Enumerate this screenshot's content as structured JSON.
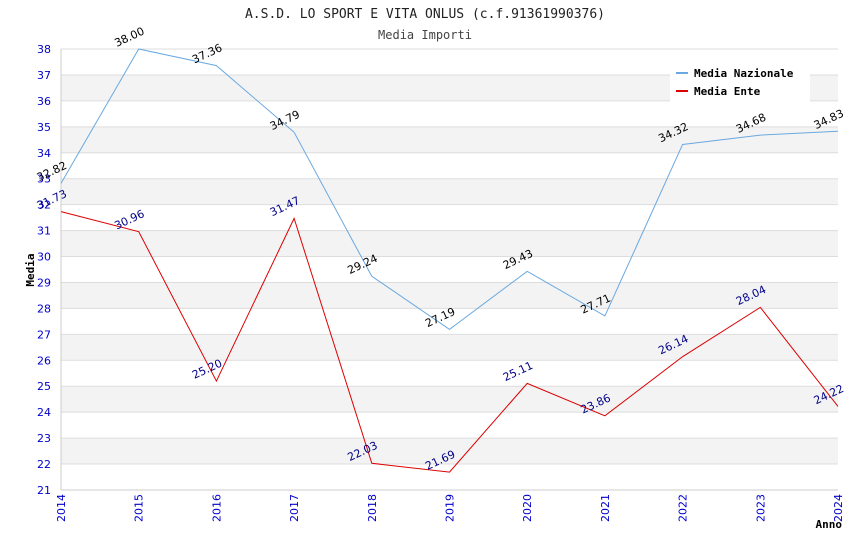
{
  "chart_data": {
    "type": "line",
    "title": "A.S.D. LO SPORT E VITA ONLUS (c.f.91361990376)",
    "subtitle": "Media Importi",
    "xlabel": "Anno",
    "ylabel": "Media",
    "ylim": [
      21,
      38
    ],
    "yticks": [
      "21",
      "22",
      "23",
      "24",
      "25",
      "26",
      "27",
      "28",
      "29",
      "30",
      "31",
      "32",
      "33",
      "34",
      "35",
      "36",
      "37",
      "38"
    ],
    "categories": [
      "2014",
      "2015",
      "2016",
      "2017",
      "2018",
      "2019",
      "2020",
      "2021",
      "2022",
      "2023",
      "2024"
    ],
    "grid": "horizontal alternating bands",
    "legend_position": "top-right",
    "series": [
      {
        "name": "Media Nazionale",
        "color": "#6aa9e0",
        "label_color": "#000000",
        "values": [
          32.82,
          38.0,
          37.36,
          34.79,
          29.24,
          27.19,
          29.43,
          27.71,
          34.32,
          34.68,
          34.83
        ],
        "labels": [
          "32.82",
          "38.00",
          "37.36",
          "34.79",
          "29.24",
          "27.19",
          "29.43",
          "27.71",
          "34.32",
          "34.68",
          "34.83"
        ]
      },
      {
        "name": "Media Ente",
        "color": "#dd0000",
        "label_color": "#000088",
        "values": [
          31.73,
          30.96,
          25.2,
          31.47,
          22.03,
          21.69,
          25.11,
          23.86,
          26.14,
          28.04,
          24.22
        ],
        "labels": [
          "31.73",
          "30.96",
          "25.20",
          "31.47",
          "22.03",
          "21.69",
          "25.11",
          "23.86",
          "26.14",
          "28.04",
          "24.22"
        ]
      }
    ]
  }
}
